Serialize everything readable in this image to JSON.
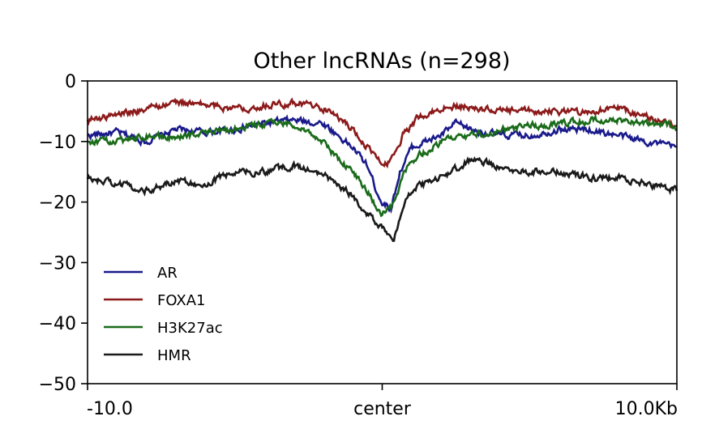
{
  "chart_data": {
    "type": "line",
    "title": "Other lncRNAs (n=298)",
    "xlabel": "",
    "ylabel": "",
    "xlim": [
      -10,
      10
    ],
    "ylim": [
      -50,
      0
    ],
    "x_ticks": [
      {
        "value": -10,
        "label": "-10.0"
      },
      {
        "value": 0,
        "label": "center"
      },
      {
        "value": 10,
        "label": "10.0Kb"
      }
    ],
    "y_ticks": [
      {
        "value": 0,
        "label": "0"
      },
      {
        "value": -10,
        "label": "−10"
      },
      {
        "value": -20,
        "label": "−20"
      },
      {
        "value": -30,
        "label": "−30"
      },
      {
        "value": -40,
        "label": "−40"
      },
      {
        "value": -50,
        "label": "−50"
      }
    ],
    "grid": false,
    "legend_position": "lower-left",
    "series": [
      {
        "name": "AR",
        "color": "#1a1a8c",
        "points": [
          [
            -10,
            -9
          ],
          [
            -9,
            -8.5
          ],
          [
            -8,
            -10
          ],
          [
            -7,
            -8
          ],
          [
            -6,
            -8.5
          ],
          [
            -5,
            -8
          ],
          [
            -4,
            -7
          ],
          [
            -3,
            -6.5
          ],
          [
            -2,
            -7
          ],
          [
            -1.5,
            -9
          ],
          [
            -1,
            -11
          ],
          [
            -0.5,
            -14
          ],
          [
            -0.2,
            -18
          ],
          [
            0,
            -20
          ],
          [
            0.3,
            -21
          ],
          [
            0.6,
            -15
          ],
          [
            1,
            -11
          ],
          [
            1.5,
            -10
          ],
          [
            2,
            -9
          ],
          [
            2.5,
            -7
          ],
          [
            3,
            -8
          ],
          [
            4,
            -9
          ],
          [
            5,
            -9
          ],
          [
            6,
            -8
          ],
          [
            7,
            -8
          ],
          [
            8,
            -9
          ],
          [
            9,
            -10
          ],
          [
            10,
            -11
          ]
        ]
      },
      {
        "name": "FOXA1",
        "color": "#8c1a1a",
        "points": [
          [
            -10,
            -6.5
          ],
          [
            -9,
            -5.5
          ],
          [
            -8,
            -4.5
          ],
          [
            -7,
            -3.5
          ],
          [
            -6,
            -4
          ],
          [
            -5,
            -4.5
          ],
          [
            -4,
            -4
          ],
          [
            -3,
            -3.5
          ],
          [
            -2,
            -4.5
          ],
          [
            -1.5,
            -6
          ],
          [
            -1,
            -8
          ],
          [
            -0.5,
            -11
          ],
          [
            0,
            -14
          ],
          [
            0.3,
            -13
          ],
          [
            0.7,
            -9
          ],
          [
            1.2,
            -6
          ],
          [
            2,
            -4.5
          ],
          [
            2.5,
            -4
          ],
          [
            3,
            -4.5
          ],
          [
            4,
            -5
          ],
          [
            5,
            -5
          ],
          [
            6,
            -5
          ],
          [
            7,
            -5
          ],
          [
            8,
            -4.5
          ],
          [
            9,
            -6
          ],
          [
            10,
            -7.5
          ]
        ]
      },
      {
        "name": "H3K27ac",
        "color": "#1a6b1a",
        "points": [
          [
            -10,
            -10
          ],
          [
            -9,
            -10
          ],
          [
            -8,
            -9
          ],
          [
            -7,
            -9.5
          ],
          [
            -6,
            -8.5
          ],
          [
            -5,
            -8
          ],
          [
            -4,
            -7
          ],
          [
            -3,
            -7
          ],
          [
            -2,
            -10
          ],
          [
            -1.5,
            -13
          ],
          [
            -1,
            -15
          ],
          [
            -0.5,
            -18
          ],
          [
            -0.2,
            -21
          ],
          [
            0,
            -22
          ],
          [
            0.3,
            -21
          ],
          [
            0.6,
            -17
          ],
          [
            1,
            -13
          ],
          [
            2,
            -10
          ],
          [
            3,
            -9
          ],
          [
            4,
            -8
          ],
          [
            5,
            -7.5
          ],
          [
            6,
            -7
          ],
          [
            7,
            -6.5
          ],
          [
            8,
            -6.5
          ],
          [
            9,
            -7
          ],
          [
            10,
            -7.5
          ]
        ]
      },
      {
        "name": "HMR",
        "color": "#1a1a1a",
        "points": [
          [
            -10,
            -16
          ],
          [
            -9,
            -17
          ],
          [
            -8,
            -18
          ],
          [
            -7,
            -16.5
          ],
          [
            -6,
            -17
          ],
          [
            -5,
            -15
          ],
          [
            -4,
            -15
          ],
          [
            -3,
            -14
          ],
          [
            -2,
            -15.5
          ],
          [
            -1.5,
            -17
          ],
          [
            -1,
            -19
          ],
          [
            -0.5,
            -22
          ],
          [
            0,
            -24
          ],
          [
            0.4,
            -26
          ],
          [
            0.7,
            -21
          ],
          [
            1,
            -18
          ],
          [
            2,
            -16
          ],
          [
            3,
            -13
          ],
          [
            4,
            -14
          ],
          [
            5,
            -15
          ],
          [
            6,
            -15
          ],
          [
            7,
            -16
          ],
          [
            8,
            -16
          ],
          [
            9,
            -17
          ],
          [
            10,
            -18
          ]
        ]
      }
    ]
  }
}
